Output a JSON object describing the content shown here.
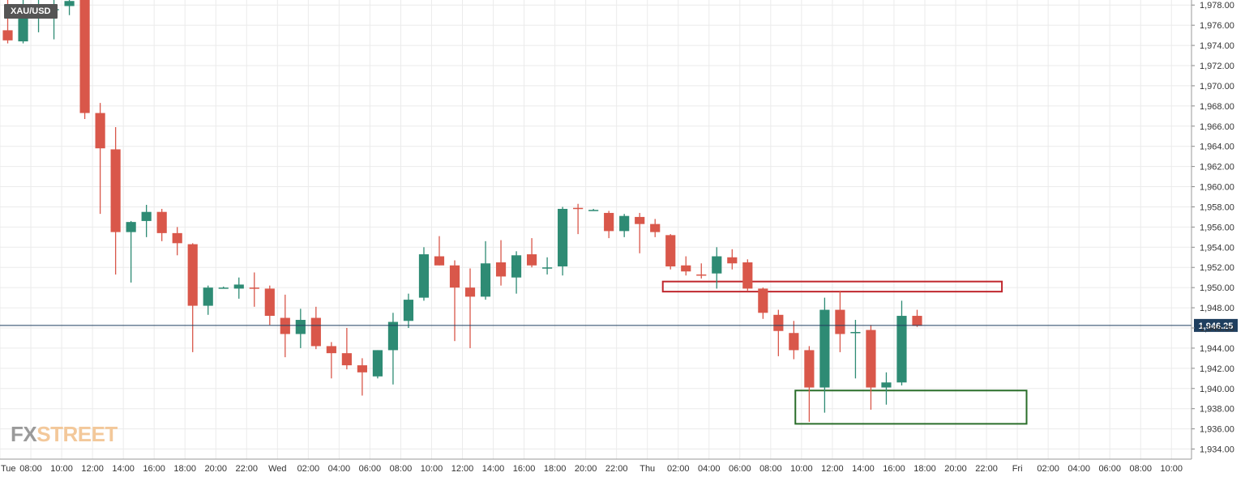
{
  "symbol": "XAU/USD",
  "watermark": {
    "prefix": "FX",
    "suffix": "STREET"
  },
  "colors": {
    "up": "#2e8b74",
    "down": "#d9574a",
    "grid": "#ebebeb",
    "current_line": "#1f3f5f",
    "resistance_box": "#c0272d",
    "support_box": "#2a6e2a"
  },
  "chart_data": {
    "type": "candlestick",
    "title": "XAU/USD",
    "interval_hours": 1,
    "ylim": [
      1933,
      1978.5
    ],
    "y_ticks": [
      1934,
      1936,
      1938,
      1940,
      1942,
      1944,
      1946,
      1948,
      1950,
      1952,
      1954,
      1956,
      1958,
      1960,
      1962,
      1964,
      1966,
      1968,
      1970,
      1972,
      1974,
      1976,
      1978
    ],
    "y_tick_labels": [
      "1,934.00",
      "1,936.00",
      "1,938.00",
      "1,940.00",
      "1,942.00",
      "1,944.00",
      "1,946.00",
      "1,948.00",
      "1,950.00",
      "1,952.00",
      "1,954.00",
      "1,956.00",
      "1,958.00",
      "1,960.00",
      "1,962.00",
      "1,964.00",
      "1,966.00",
      "1,968.00",
      "1,970.00",
      "1,972.00",
      "1,974.00",
      "1,976.00",
      "1,978.00"
    ],
    "x_labels": [
      {
        "t": 0,
        "label": "Tue"
      },
      {
        "t": 2,
        "label": "08:00"
      },
      {
        "t": 4,
        "label": "10:00"
      },
      {
        "t": 6,
        "label": "12:00"
      },
      {
        "t": 8,
        "label": "14:00"
      },
      {
        "t": 10,
        "label": "16:00"
      },
      {
        "t": 12,
        "label": "18:00"
      },
      {
        "t": 14,
        "label": "20:00"
      },
      {
        "t": 16,
        "label": "22:00"
      },
      {
        "t": 18,
        "label": "Wed"
      },
      {
        "t": 20,
        "label": "02:00"
      },
      {
        "t": 22,
        "label": "04:00"
      },
      {
        "t": 24,
        "label": "06:00"
      },
      {
        "t": 26,
        "label": "08:00"
      },
      {
        "t": 28,
        "label": "10:00"
      },
      {
        "t": 30,
        "label": "12:00"
      },
      {
        "t": 32,
        "label": "14:00"
      },
      {
        "t": 34,
        "label": "16:00"
      },
      {
        "t": 36,
        "label": "18:00"
      },
      {
        "t": 38,
        "label": "20:00"
      },
      {
        "t": 40,
        "label": "22:00"
      },
      {
        "t": 42,
        "label": "Thu"
      },
      {
        "t": 44,
        "label": "02:00"
      },
      {
        "t": 46,
        "label": "04:00"
      },
      {
        "t": 48,
        "label": "06:00"
      },
      {
        "t": 50,
        "label": "08:00"
      },
      {
        "t": 52,
        "label": "10:00"
      },
      {
        "t": 54,
        "label": "12:00"
      },
      {
        "t": 56,
        "label": "14:00"
      },
      {
        "t": 58,
        "label": "16:00"
      },
      {
        "t": 60,
        "label": "18:00"
      },
      {
        "t": 62,
        "label": "20:00"
      },
      {
        "t": 64,
        "label": "22:00"
      },
      {
        "t": 66,
        "label": "Fri"
      },
      {
        "t": 68,
        "label": "02:00"
      },
      {
        "t": 70,
        "label": "04:00"
      },
      {
        "t": 72,
        "label": "06:00"
      },
      {
        "t": 74,
        "label": "08:00"
      },
      {
        "t": 76,
        "label": "10:00"
      }
    ],
    "x_range": [
      0,
      77.3
    ],
    "candles": [
      {
        "t": 0,
        "o": 1975.5,
        "h": 1978.5,
        "l": 1974.2,
        "c": 1974.5
      },
      {
        "t": 1,
        "o": 1974.4,
        "h": 1978.5,
        "l": 1974.2,
        "c": 1977.2
      },
      {
        "t": 2,
        "o": 1977.5,
        "h": 1978.5,
        "l": 1975.3,
        "c": 1977.6
      },
      {
        "t": 3,
        "o": 1977.6,
        "h": 1978.5,
        "l": 1974.6,
        "c": 1977.6
      },
      {
        "t": 4,
        "o": 1977.9,
        "h": 1978.5,
        "l": 1977.0,
        "c": 1978.4
      },
      {
        "t": 5,
        "o": 1978.5,
        "h": 1978.5,
        "l": 1966.7,
        "c": 1967.3
      },
      {
        "t": 6,
        "o": 1967.3,
        "h": 1968.3,
        "l": 1957.3,
        "c": 1963.8
      },
      {
        "t": 7,
        "o": 1963.7,
        "h": 1965.9,
        "l": 1951.3,
        "c": 1955.5
      },
      {
        "t": 8,
        "o": 1955.5,
        "h": 1956.6,
        "l": 1950.5,
        "c": 1956.5
      },
      {
        "t": 9,
        "o": 1956.6,
        "h": 1958.2,
        "l": 1955.0,
        "c": 1957.5
      },
      {
        "t": 10,
        "o": 1957.5,
        "h": 1957.8,
        "l": 1954.6,
        "c": 1955.4
      },
      {
        "t": 11,
        "o": 1955.4,
        "h": 1956.0,
        "l": 1953.2,
        "c": 1954.4
      },
      {
        "t": 12,
        "o": 1954.3,
        "h": 1954.4,
        "l": 1943.6,
        "c": 1948.2
      },
      {
        "t": 13,
        "o": 1948.2,
        "h": 1950.2,
        "l": 1947.3,
        "c": 1950.0
      },
      {
        "t": 14,
        "o": 1950.0,
        "h": 1950.1,
        "l": 1949.9,
        "c": 1950.0
      },
      {
        "t": 15,
        "o": 1949.9,
        "h": 1951.0,
        "l": 1948.9,
        "c": 1950.3
      },
      {
        "t": 16,
        "o": 1950.0,
        "h": 1951.5,
        "l": 1948.1,
        "c": 1949.9
      },
      {
        "t": 17,
        "o": 1949.9,
        "h": 1950.2,
        "l": 1946.3,
        "c": 1947.2
      },
      {
        "t": 18,
        "o": 1947.0,
        "h": 1949.3,
        "l": 1943.1,
        "c": 1945.4
      },
      {
        "t": 19,
        "o": 1945.4,
        "h": 1947.9,
        "l": 1944.0,
        "c": 1946.8
      },
      {
        "t": 20,
        "o": 1947.0,
        "h": 1948.1,
        "l": 1943.9,
        "c": 1944.2
      },
      {
        "t": 21,
        "o": 1944.2,
        "h": 1944.6,
        "l": 1941.0,
        "c": 1943.5
      },
      {
        "t": 22,
        "o": 1943.5,
        "h": 1946.0,
        "l": 1941.9,
        "c": 1942.3
      },
      {
        "t": 23,
        "o": 1942.3,
        "h": 1943.0,
        "l": 1939.3,
        "c": 1941.6
      },
      {
        "t": 24,
        "o": 1941.2,
        "h": 1943.8,
        "l": 1941.0,
        "c": 1943.8
      },
      {
        "t": 25,
        "o": 1943.8,
        "h": 1947.5,
        "l": 1940.4,
        "c": 1946.6
      },
      {
        "t": 26,
        "o": 1946.7,
        "h": 1949.4,
        "l": 1946.0,
        "c": 1948.8
      },
      {
        "t": 27,
        "o": 1949.0,
        "h": 1954.0,
        "l": 1948.7,
        "c": 1953.3
      },
      {
        "t": 28,
        "o": 1953.1,
        "h": 1955.1,
        "l": 1952.2,
        "c": 1952.2
      },
      {
        "t": 29,
        "o": 1952.2,
        "h": 1952.7,
        "l": 1944.7,
        "c": 1950.0
      },
      {
        "t": 30,
        "o": 1950.0,
        "h": 1951.9,
        "l": 1944.0,
        "c": 1949.1
      },
      {
        "t": 31,
        "o": 1949.1,
        "h": 1954.6,
        "l": 1948.8,
        "c": 1952.4
      },
      {
        "t": 32,
        "o": 1952.5,
        "h": 1954.7,
        "l": 1950.2,
        "c": 1951.1
      },
      {
        "t": 33,
        "o": 1951.0,
        "h": 1953.6,
        "l": 1949.4,
        "c": 1953.2
      },
      {
        "t": 34,
        "o": 1953.3,
        "h": 1954.9,
        "l": 1952.0,
        "c": 1952.2
      },
      {
        "t": 35,
        "o": 1952.0,
        "h": 1953.0,
        "l": 1951.3,
        "c": 1952.0
      },
      {
        "t": 36,
        "o": 1952.1,
        "h": 1958.0,
        "l": 1951.2,
        "c": 1957.8
      },
      {
        "t": 37,
        "o": 1957.9,
        "h": 1958.3,
        "l": 1955.3,
        "c": 1957.8
      },
      {
        "t": 38,
        "o": 1957.6,
        "h": 1957.8,
        "l": 1957.6,
        "c": 1957.7
      },
      {
        "t": 39,
        "o": 1957.4,
        "h": 1957.6,
        "l": 1954.9,
        "c": 1955.6
      },
      {
        "t": 40,
        "o": 1955.6,
        "h": 1957.3,
        "l": 1955.0,
        "c": 1957.1
      },
      {
        "t": 41,
        "o": 1957.0,
        "h": 1957.4,
        "l": 1953.4,
        "c": 1956.3
      },
      {
        "t": 42,
        "o": 1956.3,
        "h": 1956.8,
        "l": 1955.0,
        "c": 1955.5
      },
      {
        "t": 43,
        "o": 1955.2,
        "h": 1955.3,
        "l": 1951.8,
        "c": 1952.1
      },
      {
        "t": 44,
        "o": 1952.2,
        "h": 1953.1,
        "l": 1951.2,
        "c": 1951.6
      },
      {
        "t": 45,
        "o": 1951.3,
        "h": 1952.4,
        "l": 1950.9,
        "c": 1951.2
      },
      {
        "t": 46,
        "o": 1951.4,
        "h": 1954.0,
        "l": 1949.9,
        "c": 1953.1
      },
      {
        "t": 47,
        "o": 1953.0,
        "h": 1953.8,
        "l": 1951.8,
        "c": 1952.4
      },
      {
        "t": 48,
        "o": 1952.5,
        "h": 1952.8,
        "l": 1949.7,
        "c": 1949.9
      },
      {
        "t": 49,
        "o": 1949.9,
        "h": 1950.0,
        "l": 1946.9,
        "c": 1947.5
      },
      {
        "t": 50,
        "o": 1947.3,
        "h": 1947.8,
        "l": 1943.2,
        "c": 1945.7
      },
      {
        "t": 51,
        "o": 1945.5,
        "h": 1946.7,
        "l": 1942.9,
        "c": 1943.8
      },
      {
        "t": 52,
        "o": 1943.8,
        "h": 1944.2,
        "l": 1936.7,
        "c": 1940.1
      },
      {
        "t": 53,
        "o": 1940.1,
        "h": 1949.0,
        "l": 1937.6,
        "c": 1947.8
      },
      {
        "t": 54,
        "o": 1947.8,
        "h": 1949.7,
        "l": 1943.6,
        "c": 1945.4
      },
      {
        "t": 55,
        "o": 1945.5,
        "h": 1946.8,
        "l": 1941.0,
        "c": 1945.6
      },
      {
        "t": 56,
        "o": 1945.8,
        "h": 1946.3,
        "l": 1937.9,
        "c": 1940.1
      },
      {
        "t": 57,
        "o": 1940.1,
        "h": 1941.6,
        "l": 1938.4,
        "c": 1940.6
      },
      {
        "t": 58,
        "o": 1940.6,
        "h": 1948.7,
        "l": 1940.3,
        "c": 1947.2
      },
      {
        "t": 59,
        "o": 1947.2,
        "h": 1947.8,
        "l": 1946.1,
        "c": 1946.2
      }
    ],
    "current_price": 1946.25,
    "current_price_label": "1,946.25",
    "annotations": [
      {
        "kind": "box",
        "name": "resistance-zone",
        "t0": 43.0,
        "t1": 65.0,
        "p0": 1949.6,
        "p1": 1950.6,
        "color": "#c0272d"
      },
      {
        "kind": "box",
        "name": "support-zone",
        "t0": 51.6,
        "t1": 66.6,
        "p0": 1936.5,
        "p1": 1939.8,
        "color": "#2a6e2a"
      }
    ],
    "grid": true
  }
}
